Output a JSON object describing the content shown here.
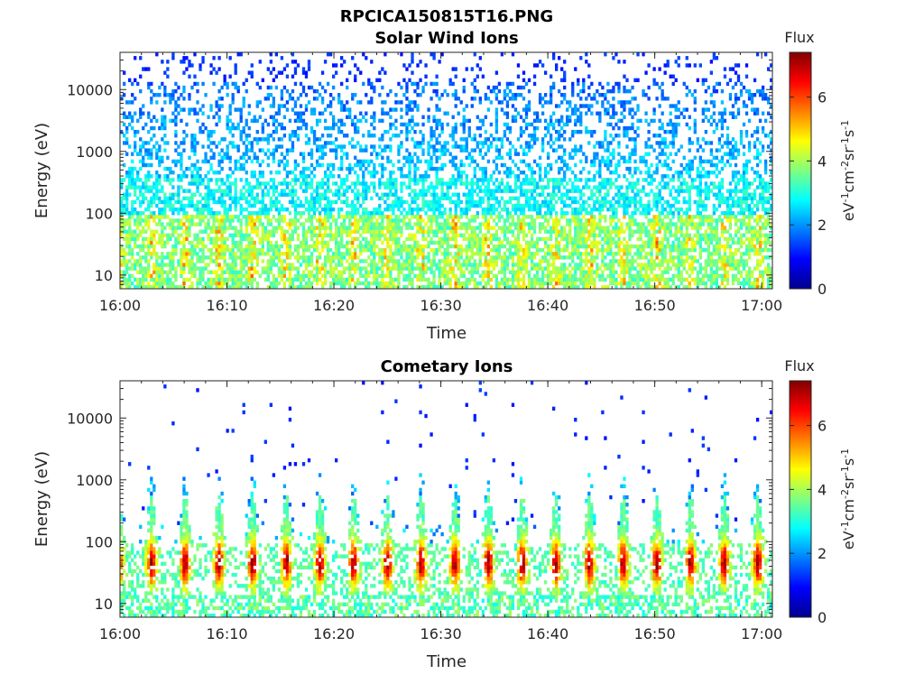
{
  "figure_title": "RPCICA150815T16.PNG",
  "colors": {
    "colormap": "jet",
    "axis": "#262626"
  },
  "chart_data": [
    {
      "type": "heatmap",
      "title": "Solar Wind Ions",
      "xlabel": "Time",
      "ylabel": "Energy (eV)",
      "x_range": [
        "16:00",
        "17:01"
      ],
      "x_ticks": [
        "16:00",
        "16:10",
        "16:20",
        "16:30",
        "16:40",
        "16:50",
        "17:00"
      ],
      "y_scale": "log",
      "y_range": [
        6,
        40000
      ],
      "y_ticks": [
        "10",
        "100",
        "1000",
        "10000"
      ],
      "colorbar": {
        "title": "Flux",
        "label": "eV-1cm-2sr-1s-1",
        "range": [
          0,
          7.4
        ],
        "ticks": [
          "0",
          "2",
          "4",
          "6"
        ]
      },
      "grid": false
    },
    {
      "type": "heatmap",
      "title": "Cometary Ions",
      "xlabel": "Time",
      "ylabel": "Energy (eV)",
      "x_range": [
        "16:00",
        "17:01"
      ],
      "x_ticks": [
        "16:00",
        "16:10",
        "16:20",
        "16:30",
        "16:40",
        "16:50",
        "17:00"
      ],
      "y_scale": "log",
      "y_range": [
        6,
        40000
      ],
      "y_ticks": [
        "10",
        "100",
        "1000",
        "10000"
      ],
      "colorbar": {
        "title": "Flux",
        "label": "eV-1cm-2sr-1s-1",
        "range": [
          0,
          7.4
        ],
        "ticks": [
          "0",
          "2",
          "4",
          "6"
        ]
      },
      "grid": false
    }
  ]
}
